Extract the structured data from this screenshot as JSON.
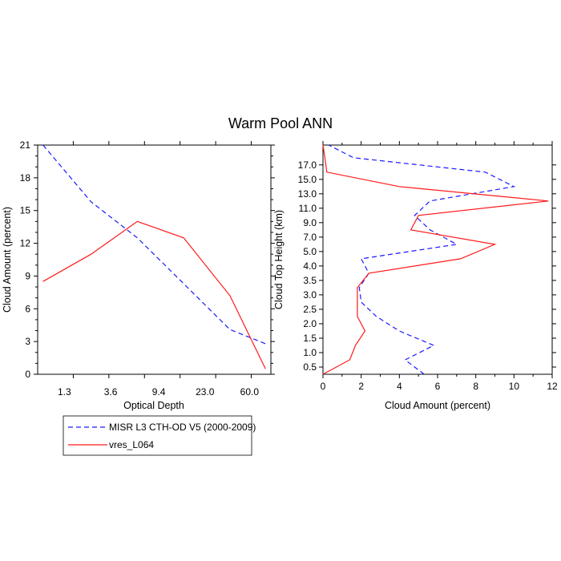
{
  "title": "Warm Pool ANN",
  "colors": {
    "obs": "#1a1aff",
    "model": "#ff1a1a"
  },
  "legend": {
    "entries": [
      "MISR L3 CTH-OD V5 (2000-2009)",
      "vres_L064"
    ]
  },
  "chart_data": [
    {
      "type": "line",
      "xlabel": "Optical Depth",
      "ylabel": "Cloud Amount (percent)",
      "categories": [
        "1.3",
        "3.6",
        "9.4",
        "23.0",
        "60.0"
      ],
      "ylim": [
        0,
        21
      ],
      "yticks": [
        0,
        3,
        6,
        9,
        12,
        15,
        18,
        21
      ],
      "series": [
        {
          "name": "MISR L3 CTH-OD V5 (2000-2009)",
          "style": "dashed",
          "x": [
            0.15,
            1.5,
            2.8,
            4.1,
            5.4,
            6.4
          ],
          "y": [
            21.0,
            15.8,
            12.5,
            8.3,
            4.1,
            2.8
          ]
        },
        {
          "name": "vres_L064",
          "style": "solid",
          "x": [
            0.15,
            1.5,
            2.8,
            4.1,
            5.4,
            6.4
          ],
          "y": [
            8.5,
            11.0,
            14.0,
            12.5,
            7.2,
            0.5
          ]
        }
      ]
    },
    {
      "type": "line",
      "xlabel": "Cloud Amount (percent)",
      "ylabel": "Cloud Top Height (km)",
      "xlim": [
        0,
        12
      ],
      "xticks": [
        0,
        2,
        4,
        6,
        8,
        10,
        12
      ],
      "ylim": [
        0.0,
        18.0
      ],
      "yticks": [
        0.5,
        1.0,
        1.5,
        2.0,
        2.5,
        3.0,
        3.5,
        4.0,
        5.0,
        7.0,
        9.0,
        11.0,
        13.0,
        15.0,
        17.0
      ],
      "series": [
        {
          "name": "MISR L3 CTH-OD V5 (2000-2009)",
          "style": "dashed",
          "points": [
            [
              5.3,
              0.0
            ],
            [
              4.3,
              0.4
            ],
            [
              5.8,
              0.8
            ],
            [
              4.0,
              1.2
            ],
            [
              2.8,
              1.6
            ],
            [
              2.0,
              2.0
            ],
            [
              1.9,
              2.4
            ],
            [
              2.4,
              2.8
            ],
            [
              2.0,
              3.2
            ],
            [
              7.0,
              3.6
            ],
            [
              5.6,
              4.0
            ],
            [
              4.8,
              4.4
            ],
            [
              5.6,
              4.8
            ],
            [
              10.0,
              5.2
            ],
            [
              8.5,
              5.6
            ],
            [
              1.6,
              6.0
            ],
            [
              0.3,
              6.35
            ]
          ]
        },
        {
          "name": "vres_L064",
          "style": "solid",
          "points": [
            [
              0.0,
              0.0
            ],
            [
              1.4,
              0.4
            ],
            [
              1.7,
              0.8
            ],
            [
              2.2,
              1.2
            ],
            [
              1.8,
              1.6
            ],
            [
              1.8,
              2.0
            ],
            [
              1.8,
              2.4
            ],
            [
              2.4,
              2.8
            ],
            [
              7.2,
              3.2
            ],
            [
              9.0,
              3.6
            ],
            [
              4.6,
              4.0
            ],
            [
              5.0,
              4.4
            ],
            [
              11.8,
              4.8
            ],
            [
              4.0,
              5.2
            ],
            [
              0.2,
              5.6
            ],
            [
              0.1,
              6.0
            ],
            [
              0.0,
              6.35
            ]
          ]
        }
      ]
    }
  ]
}
